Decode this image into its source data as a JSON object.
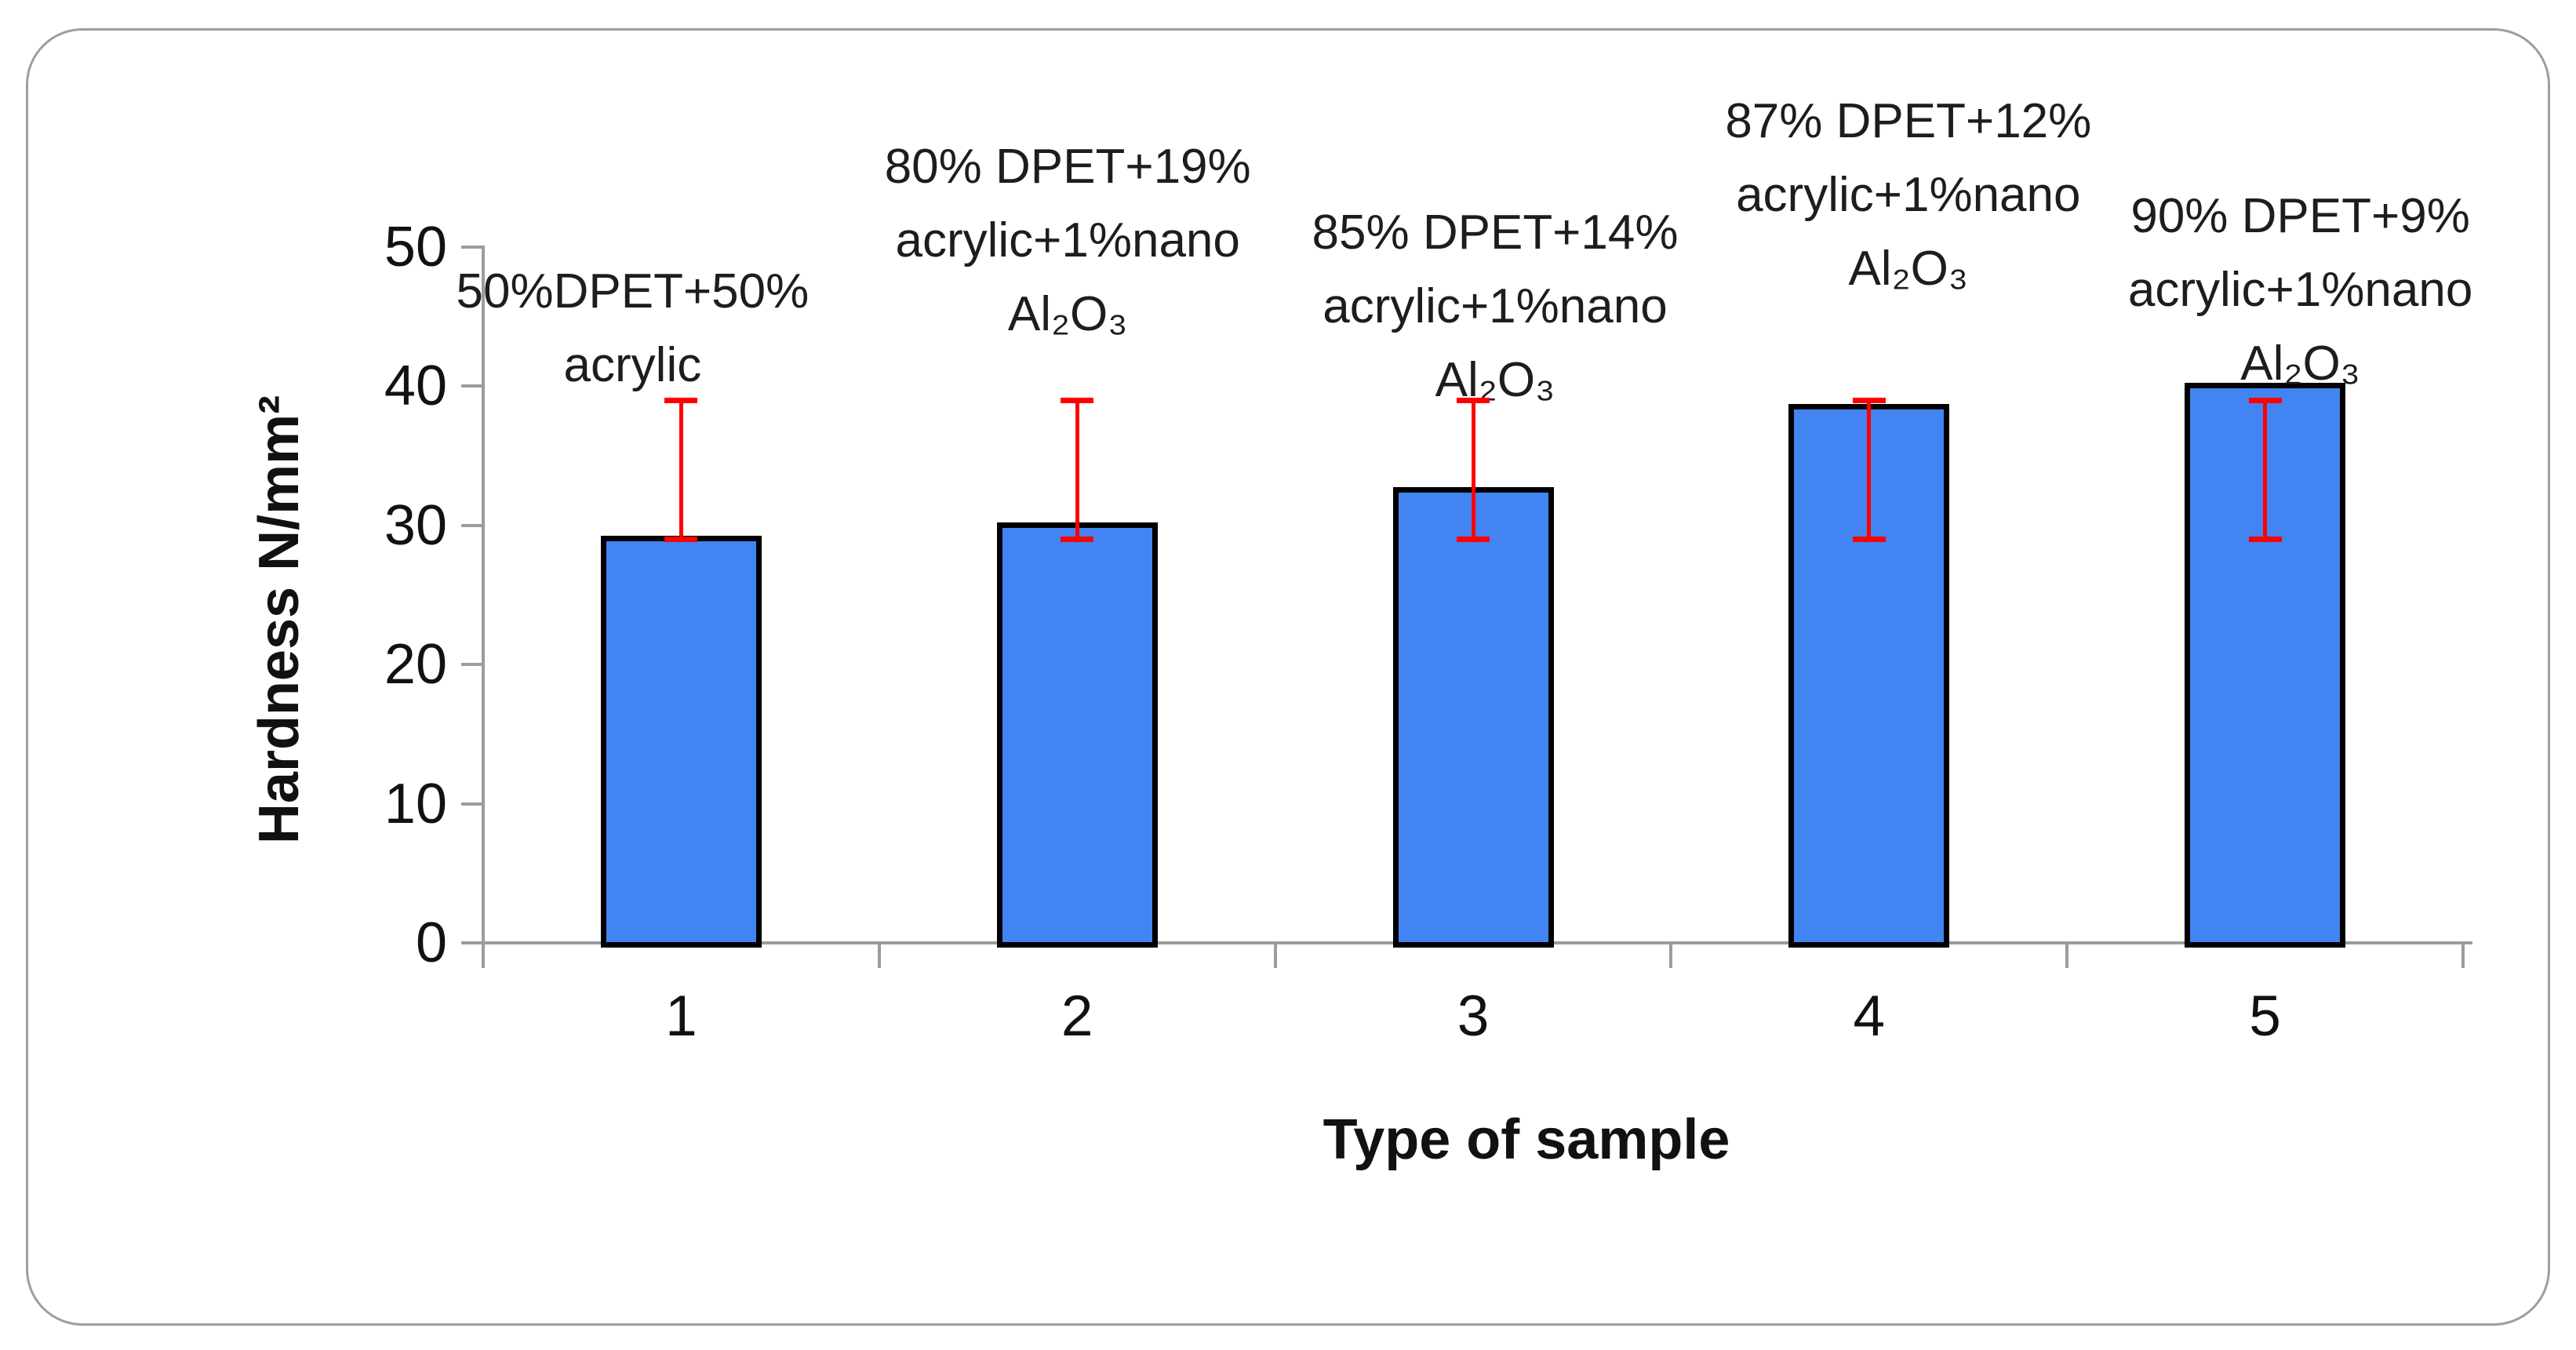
{
  "figure": {
    "background": "#ffffff",
    "frame_color": "#9e9e9e"
  },
  "chart_data": {
    "type": "bar",
    "title": "",
    "xlabel": "Type of sample",
    "ylabel": "Hardness N/mm²",
    "categories": [
      "1",
      "2",
      "3",
      "4",
      "5"
    ],
    "values": [
      29,
      30,
      32.5,
      38.5,
      40
    ],
    "bar_labels": [
      [
        "50%DPET+50%",
        "acrylic"
      ],
      [
        "80% DPET+19%",
        "acrylic+1%nano",
        "Al₂O₃"
      ],
      [
        "85% DPET+14%",
        "acrylic+1%nano",
        "Al₂O₃"
      ],
      [
        "87% DPET+12%",
        "acrylic+1%nano",
        "Al₂O₃"
      ],
      [
        "90% DPET+9%",
        "acrylic+1%nano",
        "Al₂O₃"
      ]
    ],
    "error_low": [
      29,
      29,
      29,
      29,
      29
    ],
    "error_high": [
      39,
      39,
      39,
      39,
      39
    ],
    "ylim": [
      0,
      50
    ],
    "yticks": [
      0,
      10,
      20,
      30,
      40,
      50
    ],
    "grid": false,
    "legend": "none",
    "colors": {
      "bar_fill": "#4384f3",
      "bar_border": "#000000",
      "error_bar": "#ff0000",
      "axis": "#9c9c9c",
      "text": "#1d1d1d"
    }
  }
}
